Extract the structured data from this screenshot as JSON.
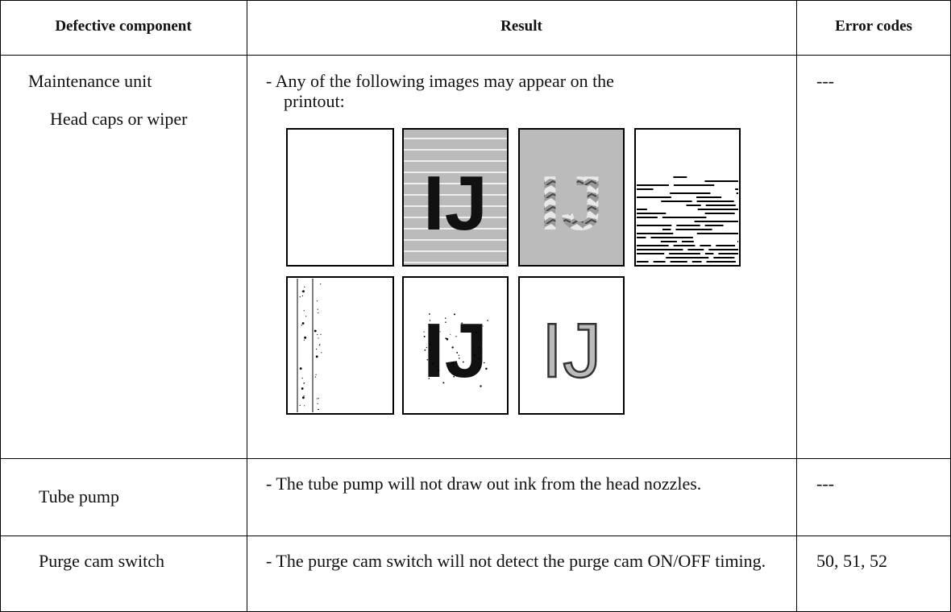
{
  "table": {
    "header": [
      "Defective component",
      "Result",
      "Error codes"
    ],
    "rows": [
      {
        "component": [
          "Maintenance unit",
          "Head caps or wiper"
        ],
        "result": "- Any of the following images may appear on the printout:",
        "sample_text": "IJ",
        "error_codes": "---"
      },
      {
        "component": [
          "Tube pump"
        ],
        "result": "- The tube pump will not draw out ink from the head nozzles.",
        "error_codes": "---"
      },
      {
        "component": [
          "Purge cam switch"
        ],
        "result": "- The purge cam switch will not detect the purge cam ON/OFF timing.",
        "error_codes": "50, 51, 52"
      }
    ]
  }
}
